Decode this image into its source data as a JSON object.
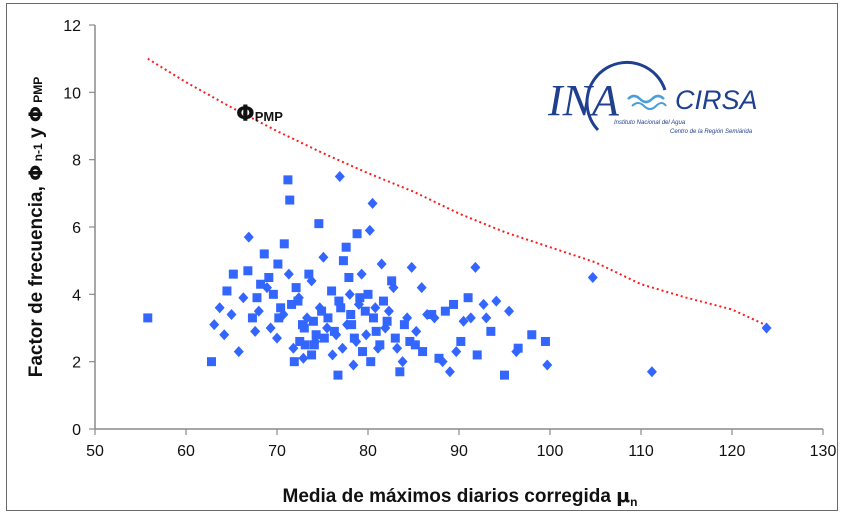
{
  "chart_data": {
    "type": "scatter",
    "xlabel_main": "Media de máximos diarios corregida ",
    "xlabel_symbol": "μ",
    "xlabel_sub": "n",
    "ylabel_main": "Factor de frecuencia, ",
    "ylabel_phi1": "Φ",
    "ylabel_sub1": " n-1",
    "ylabel_and": " y ",
    "ylabel_phi2": "Φ",
    "ylabel_sub2": " PMP",
    "xlim": [
      50,
      130
    ],
    "ylim": [
      0,
      12
    ],
    "xticks": [
      50,
      60,
      70,
      80,
      90,
      100,
      110,
      120,
      130
    ],
    "yticks": [
      0,
      2,
      4,
      6,
      8,
      10,
      12
    ],
    "grid": false,
    "annotation": {
      "symbol": "Φ",
      "sub": "PMP"
    },
    "colors": {
      "points": "#3366ff",
      "curve": "#ff1a1a"
    },
    "curve": {
      "name": "ΦPMP",
      "style": "dotted",
      "x": [
        55.8,
        60,
        65,
        70,
        75,
        80,
        85,
        90,
        95,
        100,
        105,
        110,
        115,
        120,
        124
      ],
      "y": [
        11.0,
        10.3,
        9.55,
        8.85,
        8.2,
        7.6,
        7.05,
        6.4,
        5.85,
        5.4,
        4.95,
        4.3,
        3.9,
        3.55,
        3.05
      ]
    },
    "series": [
      {
        "marker": "square",
        "points": [
          [
            55.8,
            3.3
          ],
          [
            62.8,
            2.0
          ],
          [
            64.5,
            4.1
          ],
          [
            65.2,
            4.6
          ],
          [
            66.8,
            4.7
          ],
          [
            67.3,
            3.3
          ],
          [
            67.8,
            3.9
          ],
          [
            68.2,
            4.3
          ],
          [
            68.6,
            5.2
          ],
          [
            69.1,
            4.5
          ],
          [
            69.6,
            4.0
          ],
          [
            70.1,
            4.9
          ],
          [
            70.4,
            3.6
          ],
          [
            70.8,
            5.5
          ],
          [
            71.2,
            7.4
          ],
          [
            71.4,
            6.8
          ],
          [
            71.6,
            3.7
          ],
          [
            71.9,
            2.0
          ],
          [
            72.1,
            4.2
          ],
          [
            72.5,
            2.6
          ],
          [
            72.8,
            3.1
          ],
          [
            73.1,
            2.5
          ],
          [
            73.5,
            4.6
          ],
          [
            73.8,
            2.2
          ],
          [
            74.0,
            3.2
          ],
          [
            74.3,
            2.8
          ],
          [
            74.6,
            6.1
          ],
          [
            74.9,
            3.5
          ],
          [
            75.2,
            2.7
          ],
          [
            75.6,
            3.3
          ],
          [
            76.0,
            4.1
          ],
          [
            76.3,
            2.9
          ],
          [
            76.7,
            1.6
          ],
          [
            77.0,
            3.6
          ],
          [
            77.3,
            5.0
          ],
          [
            77.6,
            5.4
          ],
          [
            77.9,
            4.5
          ],
          [
            78.2,
            3.1
          ],
          [
            78.5,
            2.7
          ],
          [
            78.8,
            5.8
          ],
          [
            79.1,
            3.9
          ],
          [
            79.4,
            2.3
          ],
          [
            79.7,
            3.5
          ],
          [
            80.0,
            4.0
          ],
          [
            80.3,
            2.0
          ],
          [
            80.6,
            3.3
          ],
          [
            80.9,
            2.9
          ],
          [
            81.3,
            2.5
          ],
          [
            81.7,
            3.8
          ],
          [
            82.1,
            3.2
          ],
          [
            82.6,
            4.4
          ],
          [
            83.0,
            2.7
          ],
          [
            83.5,
            1.7
          ],
          [
            84.0,
            3.1
          ],
          [
            84.6,
            2.6
          ],
          [
            85.2,
            2.5
          ],
          [
            86.0,
            2.3
          ],
          [
            87.0,
            3.4
          ],
          [
            87.8,
            2.1
          ],
          [
            88.5,
            3.5
          ],
          [
            89.4,
            3.7
          ],
          [
            90.2,
            2.6
          ],
          [
            91.0,
            3.9
          ],
          [
            92.0,
            2.2
          ],
          [
            93.5,
            2.9
          ],
          [
            95.0,
            1.6
          ],
          [
            96.5,
            2.4
          ],
          [
            98.0,
            2.8
          ],
          [
            99.5,
            2.6
          ],
          [
            78.1,
            3.4
          ],
          [
            76.8,
            3.8
          ],
          [
            74.1,
            2.5
          ],
          [
            72.3,
            3.8
          ],
          [
            70.2,
            3.3
          ],
          [
            73.0,
            3.0
          ]
        ]
      },
      {
        "marker": "diamond",
        "points": [
          [
            63.1,
            3.1
          ],
          [
            63.7,
            3.6
          ],
          [
            64.2,
            2.8
          ],
          [
            65.0,
            3.4
          ],
          [
            65.8,
            2.3
          ],
          [
            66.3,
            3.9
          ],
          [
            66.9,
            5.7
          ],
          [
            67.6,
            2.9
          ],
          [
            68.0,
            3.5
          ],
          [
            68.9,
            4.2
          ],
          [
            69.3,
            3.0
          ],
          [
            70.0,
            2.7
          ],
          [
            70.7,
            3.4
          ],
          [
            71.3,
            4.6
          ],
          [
            71.8,
            2.4
          ],
          [
            72.4,
            3.9
          ],
          [
            72.9,
            2.1
          ],
          [
            73.3,
            3.3
          ],
          [
            73.8,
            4.4
          ],
          [
            74.2,
            2.6
          ],
          [
            74.7,
            3.6
          ],
          [
            75.1,
            5.1
          ],
          [
            75.5,
            3.0
          ],
          [
            76.1,
            2.2
          ],
          [
            76.5,
            2.8
          ],
          [
            76.9,
            7.5
          ],
          [
            77.2,
            2.4
          ],
          [
            77.7,
            3.1
          ],
          [
            78.0,
            4.0
          ],
          [
            78.4,
            1.9
          ],
          [
            78.7,
            2.6
          ],
          [
            79.0,
            3.7
          ],
          [
            79.3,
            4.6
          ],
          [
            79.8,
            2.8
          ],
          [
            80.2,
            5.9
          ],
          [
            80.5,
            6.7
          ],
          [
            80.8,
            3.6
          ],
          [
            81.1,
            2.4
          ],
          [
            81.5,
            4.9
          ],
          [
            81.9,
            3.0
          ],
          [
            82.3,
            3.5
          ],
          [
            82.8,
            4.2
          ],
          [
            83.2,
            2.4
          ],
          [
            83.8,
            2.0
          ],
          [
            84.3,
            3.3
          ],
          [
            84.8,
            4.8
          ],
          [
            85.3,
            2.9
          ],
          [
            85.9,
            4.2
          ],
          [
            86.5,
            3.4
          ],
          [
            87.3,
            3.3
          ],
          [
            88.2,
            2.0
          ],
          [
            89.0,
            1.7
          ],
          [
            89.7,
            2.3
          ],
          [
            90.5,
            3.2
          ],
          [
            91.3,
            3.3
          ],
          [
            91.8,
            4.8
          ],
          [
            93.0,
            3.3
          ],
          [
            94.1,
            3.8
          ],
          [
            95.5,
            3.5
          ],
          [
            96.3,
            2.3
          ],
          [
            99.7,
            1.9
          ],
          [
            104.7,
            4.5
          ],
          [
            111.2,
            1.7
          ],
          [
            123.8,
            3.0
          ],
          [
            92.7,
            3.7
          ]
        ]
      }
    ]
  },
  "logo": {
    "main": "INA",
    "secondary": "CIRSA",
    "line1": "Instituto Nacional del Agua",
    "line2": "Centro de la Región Semiárida"
  }
}
